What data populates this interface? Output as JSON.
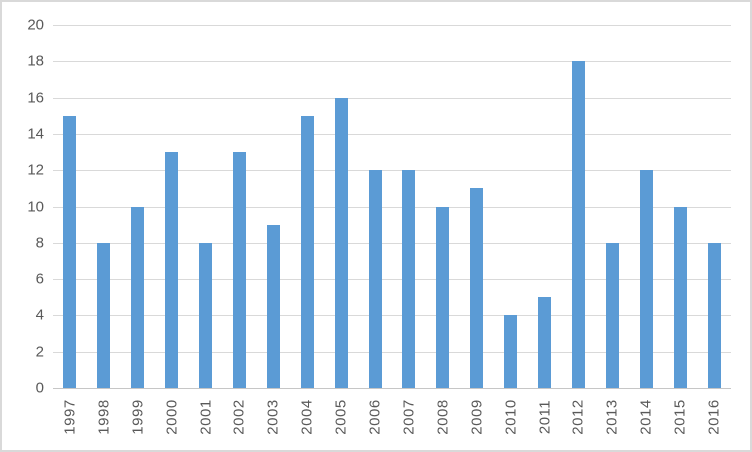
{
  "chart_data": {
    "type": "bar",
    "title": "",
    "xlabel": "",
    "ylabel": "",
    "categories": [
      "1997",
      "1998",
      "1999",
      "2000",
      "2001",
      "2002",
      "2003",
      "2004",
      "2005",
      "2006",
      "2007",
      "2008",
      "2009",
      "2010",
      "2011",
      "2012",
      "2013",
      "2014",
      "2015",
      "2016"
    ],
    "values": [
      15,
      8,
      10,
      13,
      8,
      13,
      9,
      15,
      16,
      12,
      12,
      10,
      11,
      4,
      5,
      18,
      8,
      12,
      10,
      8
    ],
    "ylim": [
      0,
      20
    ],
    "yticks": [
      0,
      2,
      4,
      6,
      8,
      10,
      12,
      14,
      16,
      18,
      20
    ],
    "grid": true,
    "legend": false,
    "x_label_rotation_degrees": -90
  },
  "style": {
    "bar_color": "#5B9BD5",
    "grid_color": "#D9D9D9",
    "axis_color": "#C6C6C6",
    "text_color": "#595959",
    "background": "#FFFFFF",
    "border_color": "#D9D9D9"
  }
}
